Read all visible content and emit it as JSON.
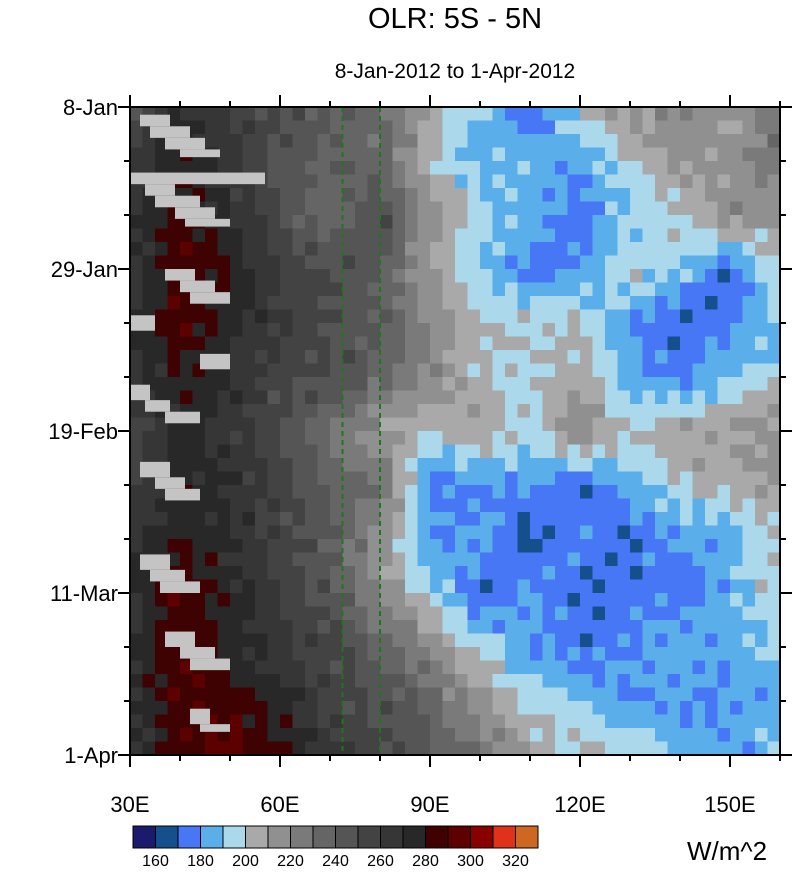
{
  "chart_data": {
    "type": "heatmap",
    "title": "OLR: 5S - 5N",
    "subtitle": "8-Jan-2012 to 1-Apr-2012",
    "units_label": "W/m^2",
    "x_range": [
      30,
      160
    ],
    "x_ticks": [
      {
        "value": 30,
        "label": "30E"
      },
      {
        "value": 60,
        "label": "60E"
      },
      {
        "value": 90,
        "label": "90E"
      },
      {
        "value": 120,
        "label": "120E"
      },
      {
        "value": 150,
        "label": "150E"
      }
    ],
    "y_range_days": [
      0,
      84
    ],
    "y_ticks": [
      {
        "day": 0,
        "label": "8-Jan"
      },
      {
        "day": 21,
        "label": "29-Jan"
      },
      {
        "day": 42,
        "label": "19-Feb"
      },
      {
        "day": 63,
        "label": "11-Mar"
      },
      {
        "day": 84,
        "label": "1-Apr"
      }
    ],
    "reference_lines_lon": [
      72.5,
      80
    ],
    "reference_line_color": "#1a7a1a",
    "levels": [
      160,
      170,
      180,
      190,
      200,
      210,
      220,
      230,
      240,
      250,
      260,
      270,
      280,
      290,
      300,
      310,
      320
    ],
    "level_labels": [
      "160",
      "180",
      "200",
      "220",
      "240",
      "260",
      "280",
      "300",
      "320"
    ],
    "colors": [
      "#1b1a6c",
      "#15508c",
      "#4877f6",
      "#5aaeea",
      "#abd9eb",
      "#a9a9a9",
      "#909090",
      "#7a7a7a",
      "#656565",
      "#555555",
      "#434343",
      "#363636",
      "#282828",
      "#3e0202",
      "#5c0000",
      "#880000",
      "#e0321a",
      "#cd6820"
    ],
    "missing_color": "#c4c4c4",
    "grid_lons": [
      30,
      40,
      50,
      60,
      70,
      80,
      90,
      100,
      110,
      120,
      130,
      140,
      150,
      160
    ],
    "grid_days": [
      0,
      7,
      14,
      21,
      28,
      35,
      42,
      49,
      56,
      63,
      70,
      77,
      84
    ],
    "values": [
      [
        250,
        270,
        260,
        250,
        240,
        230,
        210,
        190,
        170,
        200,
        210,
        220,
        210,
        230
      ],
      [
        260,
        280,
        265,
        245,
        240,
        235,
        200,
        185,
        190,
        180,
        200,
        215,
        210,
        230
      ],
      [
        270,
        285,
        270,
        250,
        230,
        250,
        215,
        195,
        185,
        175,
        190,
        200,
        220,
        210
      ],
      [
        260,
        290,
        280,
        260,
        250,
        240,
        210,
        190,
        175,
        180,
        200,
        190,
        170,
        200
      ],
      [
        270,
        290,
        275,
        260,
        250,
        240,
        220,
        200,
        200,
        200,
        180,
        170,
        175,
        190
      ],
      [
        265,
        280,
        270,
        255,
        250,
        235,
        220,
        200,
        195,
        210,
        185,
        175,
        190,
        195
      ],
      [
        250,
        275,
        265,
        250,
        230,
        210,
        200,
        210,
        195,
        220,
        200,
        210,
        210,
        220
      ],
      [
        260,
        275,
        270,
        255,
        240,
        230,
        175,
        180,
        180,
        170,
        185,
        200,
        205,
        210
      ],
      [
        265,
        280,
        270,
        255,
        240,
        215,
        180,
        185,
        165,
        180,
        170,
        180,
        185,
        200
      ],
      [
        270,
        290,
        275,
        260,
        245,
        215,
        195,
        170,
        185,
        170,
        175,
        175,
        185,
        200
      ],
      [
        265,
        290,
        275,
        265,
        255,
        235,
        220,
        195,
        180,
        175,
        180,
        185,
        180,
        195
      ],
      [
        270,
        290,
        285,
        275,
        255,
        250,
        235,
        215,
        195,
        190,
        180,
        180,
        180,
        185
      ],
      [
        260,
        285,
        295,
        285,
        265,
        255,
        245,
        230,
        210,
        200,
        200,
        190,
        180,
        195
      ]
    ],
    "missing_segments": [
      [
        1,
        2.5,
        32,
        38
      ],
      [
        2.5,
        4,
        34,
        42
      ],
      [
        4,
        5.5,
        37,
        45
      ],
      [
        5.5,
        6.5,
        40,
        48
      ],
      [
        8.5,
        10,
        30,
        57
      ],
      [
        10,
        11.5,
        33,
        39
      ],
      [
        11.5,
        13,
        35,
        44
      ],
      [
        13,
        14.5,
        39,
        47
      ],
      [
        14.5,
        15.5,
        41,
        50
      ],
      [
        21,
        22.5,
        37,
        43
      ],
      [
        22.5,
        24,
        40,
        47
      ],
      [
        24,
        25.5,
        42,
        50
      ],
      [
        27,
        29,
        30,
        35
      ],
      [
        32,
        34,
        44,
        50
      ],
      [
        36,
        38,
        30,
        34
      ],
      [
        38,
        39.5,
        33,
        38
      ],
      [
        39.5,
        41,
        37,
        44
      ],
      [
        46,
        48,
        32,
        38
      ],
      [
        48,
        49.5,
        35,
        41
      ],
      [
        49.5,
        51,
        37,
        44
      ],
      [
        58,
        60,
        32,
        38
      ],
      [
        60,
        61.5,
        34,
        41
      ],
      [
        61.5,
        63,
        36,
        44
      ],
      [
        68,
        70,
        37,
        43
      ],
      [
        70,
        71.5,
        40,
        47
      ],
      [
        71.5,
        73,
        42,
        50
      ],
      [
        78,
        80,
        42,
        46
      ],
      [
        80,
        81,
        44,
        50
      ]
    ]
  }
}
